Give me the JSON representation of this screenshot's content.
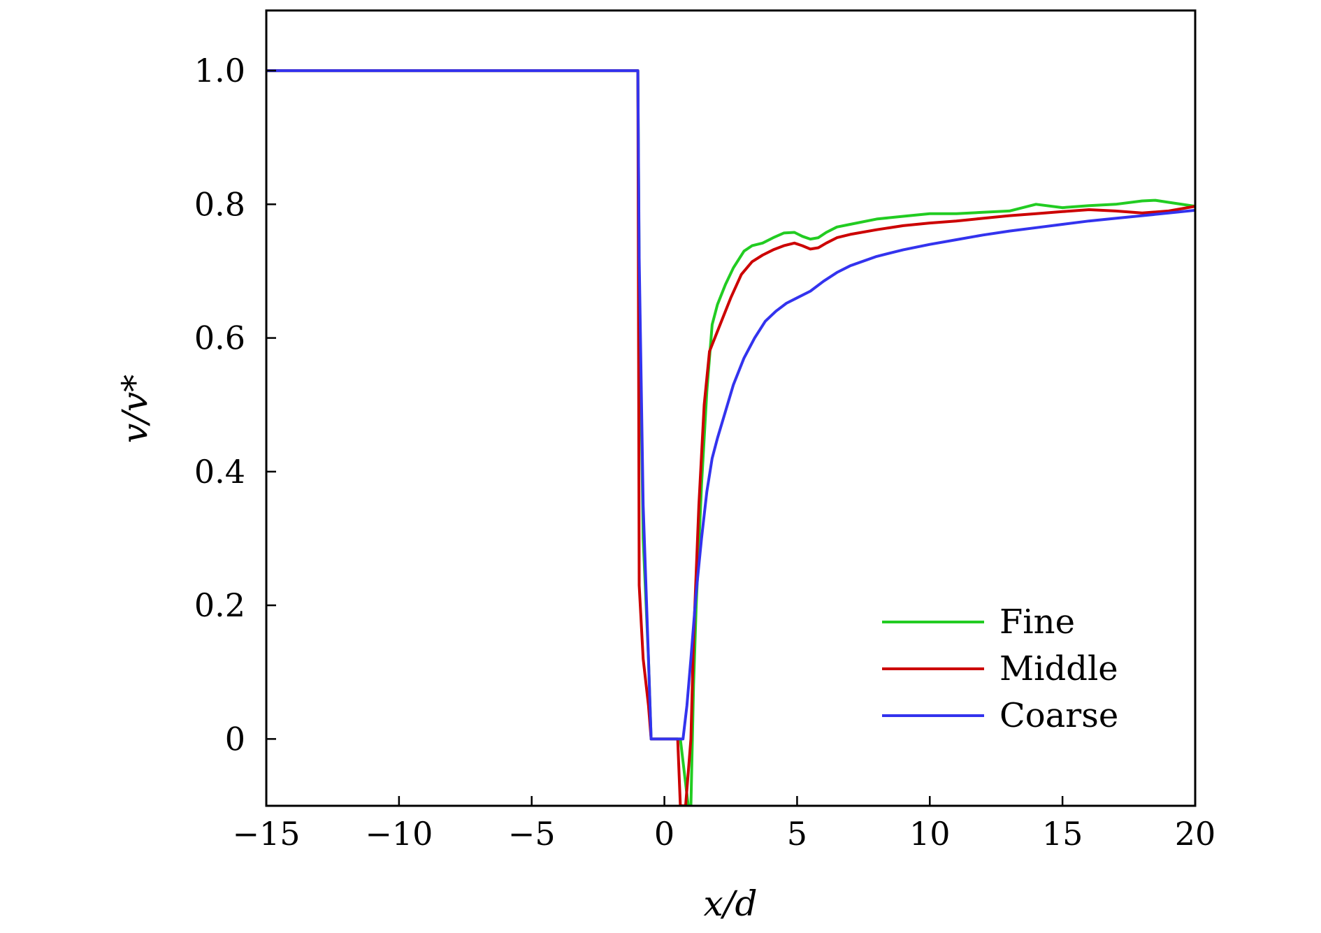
{
  "chart_data": {
    "type": "line",
    "xlabel": "x/d",
    "ylabel": "v/v*",
    "xlim": [
      -15,
      20
    ],
    "ylim": [
      -0.1,
      1.09
    ],
    "x_ticks": [
      -15,
      -10,
      -5,
      0,
      5,
      10,
      15,
      20
    ],
    "x_tick_labels": [
      "−15",
      "−10",
      "−5",
      "0",
      "5",
      "10",
      "15",
      "20"
    ],
    "y_ticks": [
      0,
      0.2,
      0.4,
      0.6,
      0.8,
      1.0
    ],
    "y_tick_labels": [
      "0",
      "0.2",
      "0.4",
      "0.6",
      "0.8",
      "1.0"
    ],
    "grid": false,
    "legend_position": "bottom-right",
    "series": [
      {
        "name": "Fine",
        "color": "#22cc22",
        "x": [
          -15,
          -1.0,
          -0.95,
          -0.8,
          -0.6,
          -0.5,
          -0.45,
          0.6,
          0.9,
          1.0,
          1.1,
          1.2,
          1.4,
          1.6,
          1.8,
          2.0,
          2.3,
          2.6,
          3.0,
          3.3,
          3.7,
          4.1,
          4.5,
          4.9,
          5.2,
          5.5,
          5.8,
          6.1,
          6.5,
          7.0,
          8.0,
          9.0,
          10.0,
          11.0,
          12.0,
          13.0,
          14.0,
          15.0,
          16.0,
          17.0,
          18.0,
          18.5,
          19.0,
          20.0
        ],
        "y": [
          1.0,
          1.0,
          0.7,
          0.3,
          0.12,
          0.0,
          0.0,
          0.0,
          -0.1,
          -0.1,
          0.08,
          0.2,
          0.38,
          0.52,
          0.62,
          0.65,
          0.68,
          0.705,
          0.73,
          0.738,
          0.742,
          0.75,
          0.757,
          0.758,
          0.752,
          0.748,
          0.75,
          0.758,
          0.766,
          0.77,
          0.778,
          0.782,
          0.786,
          0.786,
          0.788,
          0.79,
          0.8,
          0.795,
          0.798,
          0.8,
          0.805,
          0.806,
          0.803,
          0.797
        ]
      },
      {
        "name": "Middle",
        "color": "#cc0000",
        "x": [
          -15,
          -1.0,
          -0.95,
          -0.8,
          -0.6,
          -0.5,
          -0.45,
          0.5,
          0.6,
          0.8,
          1.0,
          1.1,
          1.3,
          1.5,
          1.7,
          1.9,
          2.2,
          2.5,
          2.9,
          3.3,
          3.7,
          4.1,
          4.5,
          4.9,
          5.2,
          5.5,
          5.8,
          6.1,
          6.5,
          7.0,
          8.0,
          9.0,
          10.0,
          11.0,
          12.0,
          13.0,
          14.0,
          15.0,
          16.0,
          17.0,
          18.0,
          19.0,
          20.0
        ],
        "y": [
          1.0,
          1.0,
          0.23,
          0.12,
          0.05,
          0.0,
          0.0,
          0.0,
          -0.1,
          -0.1,
          0.0,
          0.15,
          0.35,
          0.5,
          0.58,
          0.6,
          0.63,
          0.66,
          0.695,
          0.714,
          0.724,
          0.732,
          0.738,
          0.742,
          0.738,
          0.733,
          0.735,
          0.742,
          0.75,
          0.755,
          0.762,
          0.768,
          0.772,
          0.775,
          0.779,
          0.783,
          0.786,
          0.789,
          0.792,
          0.79,
          0.787,
          0.79,
          0.797
        ]
      },
      {
        "name": "Coarse",
        "color": "#3333ee",
        "x": [
          -15,
          -1.0,
          -0.95,
          -0.8,
          -0.6,
          -0.5,
          -0.45,
          0.5,
          0.6,
          0.7,
          0.85,
          1.0,
          1.2,
          1.4,
          1.6,
          1.8,
          2.0,
          2.3,
          2.6,
          3.0,
          3.4,
          3.8,
          4.2,
          4.6,
          5.0,
          5.5,
          6.0,
          6.5,
          7.0,
          8.0,
          9.0,
          10.0,
          11.0,
          12.0,
          13.0,
          14.0,
          15.0,
          16.0,
          17.0,
          18.0,
          19.0,
          20.0
        ],
        "y": [
          1.0,
          1.0,
          0.72,
          0.35,
          0.12,
          0.0,
          0.0,
          0.0,
          0.0,
          0.0,
          0.05,
          0.12,
          0.22,
          0.3,
          0.37,
          0.42,
          0.45,
          0.49,
          0.53,
          0.57,
          0.6,
          0.625,
          0.64,
          0.652,
          0.66,
          0.67,
          0.685,
          0.698,
          0.708,
          0.722,
          0.732,
          0.74,
          0.747,
          0.754,
          0.76,
          0.765,
          0.77,
          0.775,
          0.779,
          0.783,
          0.787,
          0.791
        ]
      }
    ]
  }
}
